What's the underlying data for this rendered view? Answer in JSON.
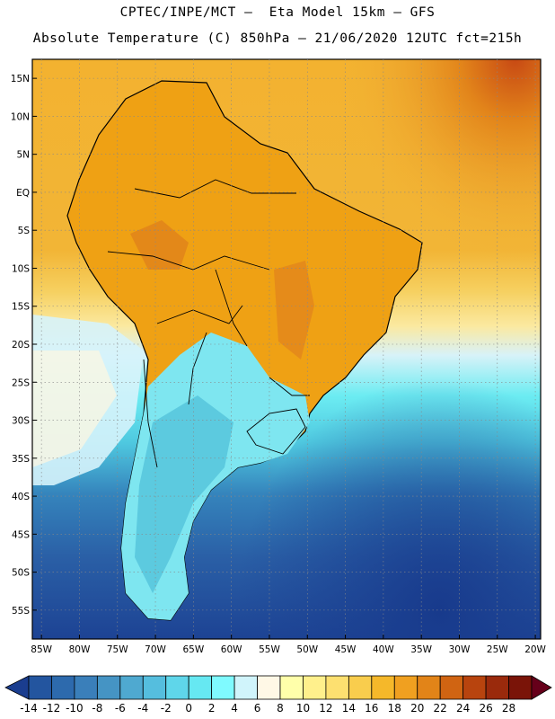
{
  "title": {
    "line1": "CPTEC/INPE/MCT –  Eta Model 15km – GFS",
    "line2": "Absolute Temperature (C) 850hPa – 21/06/2020 12UTC fct=215h"
  },
  "map": {
    "lat_labels": [
      "15N",
      "10N",
      "5N",
      "EQ",
      "5S",
      "10S",
      "15S",
      "20S",
      "25S",
      "30S",
      "35S",
      "40S",
      "45S",
      "50S",
      "55S"
    ],
    "lon_labels": [
      "85W",
      "80W",
      "75W",
      "70W",
      "65W",
      "60W",
      "55W",
      "50W",
      "45W",
      "40W",
      "35W",
      "30W",
      "25W",
      "20W"
    ],
    "lat_values": [
      15,
      10,
      5,
      0,
      -5,
      -10,
      -15,
      -20,
      -25,
      -30,
      -35,
      -40,
      -45,
      -50,
      -55
    ],
    "lon_values": [
      -85,
      -80,
      -75,
      -70,
      -65,
      -60,
      -55,
      -50,
      -45,
      -40,
      -35,
      -30,
      -25,
      -20
    ],
    "gridlines": "dotted"
  },
  "colorbar": {
    "labels": [
      "-14",
      "-12",
      "-10",
      "-8",
      "-6",
      "-4",
      "-2",
      "0",
      "2",
      "4",
      "6",
      "8",
      "10",
      "12",
      "14",
      "16",
      "18",
      "20",
      "22",
      "24",
      "26",
      "28"
    ],
    "colors": [
      "#1a3d8f",
      "#23559f",
      "#2d6aad",
      "#3a7fba",
      "#4594c4",
      "#4fa9d0",
      "#55bede",
      "#5fd6ea",
      "#66e8f2",
      "#7ffaff",
      "#d0f4fb",
      "#fff8e6",
      "#ffffaa",
      "#fff08c",
      "#fde070",
      "#f9cd4d",
      "#f5b82a",
      "#f0a020",
      "#e28418",
      "#d06412",
      "#b8440e",
      "#9a2a0c",
      "#7a1408",
      "#66001a"
    ],
    "unit": "C"
  }
}
